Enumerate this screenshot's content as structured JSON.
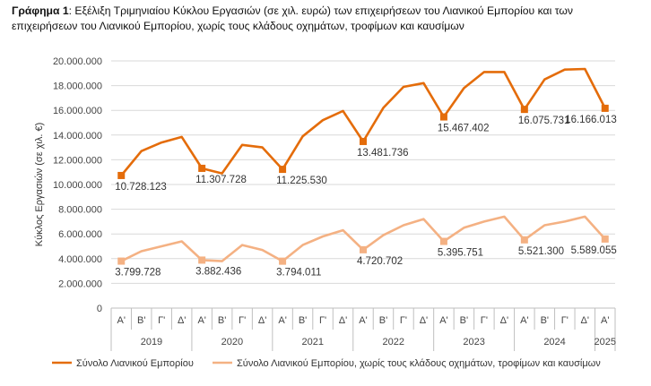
{
  "caption": {
    "prefix": "Γράφημα 1",
    "text": ": Εξέλιξη Τριμηνιαίου Κύκλου Εργασιών (σε χιλ. ευρώ) των επιχειρήσεων του Λιανικού Εμπορίου και των επιχειρήσεων του Λιανικού Εμπορίου, χωρίς τους κλάδους οχημάτων, τροφίμων και καυσίμων"
  },
  "chart_data": {
    "type": "line",
    "ylabel": "Κύκλος Εργασιών (σε χιλ. €)",
    "ylim": [
      0,
      20000000
    ],
    "yticks": [
      "0",
      "2.000.000",
      "4.000.000",
      "6.000.000",
      "8.000.000",
      "10.000.000",
      "12.000.000",
      "14.000.000",
      "16.000.000",
      "18.000.000",
      "20.000.000"
    ],
    "grid": true,
    "legend_position": "bottom",
    "quarters": [
      "Α'",
      "Β'",
      "Γ'",
      "Δ'",
      "Α'",
      "Β'",
      "Γ'",
      "Δ'",
      "Α'",
      "Β'",
      "Γ'",
      "Δ'",
      "Α'",
      "Β'",
      "Γ'",
      "Δ'",
      "Α'",
      "Β'",
      "Γ'",
      "Δ'",
      "Α'",
      "Β'",
      "Γ'",
      "Δ'",
      "Α'"
    ],
    "years": [
      {
        "label": "2019",
        "start": 0,
        "count": 4
      },
      {
        "label": "2020",
        "start": 4,
        "count": 4
      },
      {
        "label": "2021",
        "start": 8,
        "count": 4
      },
      {
        "label": "2022",
        "start": 12,
        "count": 4
      },
      {
        "label": "2023",
        "start": 16,
        "count": 4
      },
      {
        "label": "2024",
        "start": 20,
        "count": 4
      },
      {
        "label": "2025",
        "start": 24,
        "count": 1
      }
    ],
    "series": [
      {
        "name": "Σύνολο Λιανικού Εμπορίου",
        "color": "#E46C0A",
        "values": [
          10728123,
          12700000,
          13400000,
          13850000,
          11307728,
          10900000,
          13200000,
          13000000,
          11225530,
          13900000,
          15200000,
          15950000,
          13481736,
          16200000,
          17900000,
          18200000,
          15467402,
          17800000,
          19100000,
          19100000,
          16075731,
          18500000,
          19300000,
          19350000,
          16166013
        ],
        "labels": {
          "0": "10.728.123",
          "4": "11.307.728",
          "8": "11.225.530",
          "12": "13.481.736",
          "16": "15.467.402",
          "20": "16.075.731",
          "24": "16.166.013"
        }
      },
      {
        "name": "Σύνολο Λιανικού Εμπορίου, χωρίς τους κλάδους οχημάτων, τροφίμων και καυσίμων",
        "color": "#F4B183",
        "values": [
          3799728,
          4600000,
          5000000,
          5400000,
          3882436,
          3800000,
          5100000,
          4700000,
          3794011,
          5100000,
          5800000,
          6300000,
          4720702,
          5900000,
          6700000,
          7200000,
          5395751,
          6500000,
          7000000,
          7400000,
          5521300,
          6700000,
          7000000,
          7400000,
          5589055
        ],
        "labels": {
          "0": "3.799.728",
          "4": "3.882.436",
          "8": "3.794.011",
          "12": "4.720.702",
          "16": "5.395.751",
          "20": "5.521.300",
          "24": "5.589.055"
        }
      }
    ]
  }
}
